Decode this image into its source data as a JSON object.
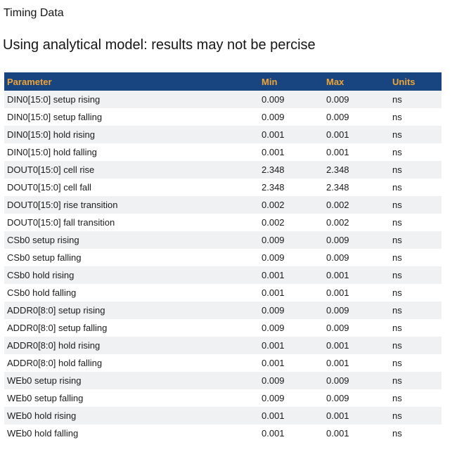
{
  "page": {
    "title": "Timing Data",
    "subtitle": "Using analytical model: results may not be percise"
  },
  "colors": {
    "header_bg": "#18447f",
    "header_text": "#efa437",
    "row_alt_bg": "#f0f1f2",
    "row_bg": "#ffffff",
    "body_text": "#1b1b1b"
  },
  "table": {
    "columns": [
      "Parameter",
      "Min",
      "Max",
      "Units"
    ],
    "rows": [
      {
        "parameter": "DIN0[15:0] setup rising",
        "min": "0.009",
        "max": "0.009",
        "units": "ns"
      },
      {
        "parameter": "DIN0[15:0] setup falling",
        "min": "0.009",
        "max": "0.009",
        "units": "ns"
      },
      {
        "parameter": "DIN0[15:0] hold rising",
        "min": "0.001",
        "max": "0.001",
        "units": "ns"
      },
      {
        "parameter": "DIN0[15:0] hold falling",
        "min": "0.001",
        "max": "0.001",
        "units": "ns"
      },
      {
        "parameter": "DOUT0[15:0] cell rise",
        "min": "2.348",
        "max": "2.348",
        "units": "ns"
      },
      {
        "parameter": "DOUT0[15:0] cell fall",
        "min": "2.348",
        "max": "2.348",
        "units": "ns"
      },
      {
        "parameter": "DOUT0[15:0] rise transition",
        "min": "0.002",
        "max": "0.002",
        "units": "ns"
      },
      {
        "parameter": "DOUT0[15:0] fall transition",
        "min": "0.002",
        "max": "0.002",
        "units": "ns"
      },
      {
        "parameter": "CSb0 setup rising",
        "min": "0.009",
        "max": "0.009",
        "units": "ns"
      },
      {
        "parameter": "CSb0 setup falling",
        "min": "0.009",
        "max": "0.009",
        "units": "ns"
      },
      {
        "parameter": "CSb0 hold rising",
        "min": "0.001",
        "max": "0.001",
        "units": "ns"
      },
      {
        "parameter": "CSb0 hold falling",
        "min": "0.001",
        "max": "0.001",
        "units": "ns"
      },
      {
        "parameter": "ADDR0[8:0] setup rising",
        "min": "0.009",
        "max": "0.009",
        "units": "ns"
      },
      {
        "parameter": "ADDR0[8:0] setup falling",
        "min": "0.009",
        "max": "0.009",
        "units": "ns"
      },
      {
        "parameter": "ADDR0[8:0] hold rising",
        "min": "0.001",
        "max": "0.001",
        "units": "ns"
      },
      {
        "parameter": "ADDR0[8:0] hold falling",
        "min": "0.001",
        "max": "0.001",
        "units": "ns"
      },
      {
        "parameter": "WEb0 setup rising",
        "min": "0.009",
        "max": "0.009",
        "units": "ns"
      },
      {
        "parameter": "WEb0 setup falling",
        "min": "0.009",
        "max": "0.009",
        "units": "ns"
      },
      {
        "parameter": "WEb0 hold rising",
        "min": "0.001",
        "max": "0.001",
        "units": "ns"
      },
      {
        "parameter": "WEb0 hold falling",
        "min": "0.001",
        "max": "0.001",
        "units": "ns"
      }
    ]
  }
}
